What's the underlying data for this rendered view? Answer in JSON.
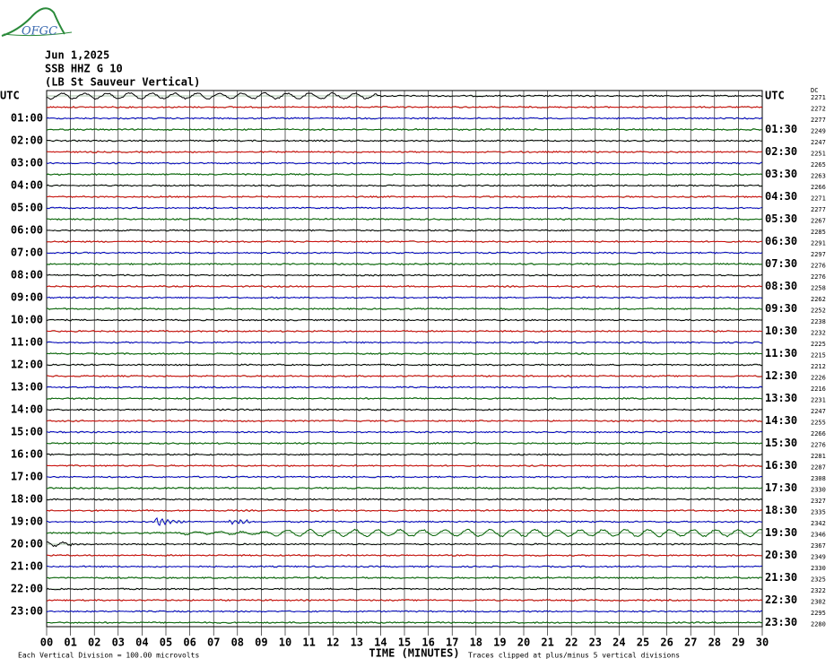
{
  "logo": "OFGC",
  "header": [
    "Jun 1,2025",
    "SSB HHZ G 10",
    "(LB St Sauveur Vertical)"
  ],
  "left_labels": [
    "UTC",
    "01:00",
    "02:00",
    "03:00",
    "04:00",
    "05:00",
    "06:00",
    "07:00",
    "08:00",
    "09:00",
    "10:00",
    "11:00",
    "12:00",
    "13:00",
    "14:00",
    "15:00",
    "16:00",
    "17:00",
    "18:00",
    "19:00",
    "20:00",
    "21:00",
    "22:00",
    "23:00"
  ],
  "right_labels": [
    "UTC",
    "01:30",
    "02:30",
    "03:30",
    "04:30",
    "05:30",
    "06:30",
    "07:30",
    "08:30",
    "09:30",
    "10:30",
    "11:30",
    "12:30",
    "13:30",
    "14:30",
    "15:30",
    "16:30",
    "17:30",
    "18:30",
    "19:30",
    "20:30",
    "21:30",
    "22:30",
    "23:30"
  ],
  "dc_title": "DC",
  "dc_offsets": [
    "2271",
    "2272",
    "2277",
    "2249",
    "2247",
    "2251",
    "2265",
    "2263",
    "2266",
    "2271",
    "2277",
    "2267",
    "2285",
    "2291",
    "2297",
    "2276",
    "2276",
    "2258",
    "2262",
    "2252",
    "2238",
    "2232",
    "2225",
    "2215",
    "2212",
    "2226",
    "2216",
    "2231",
    "2247",
    "2255",
    "2266",
    "2276",
    "2281",
    "2287",
    "2308",
    "2330",
    "2327",
    "2335",
    "2342",
    "2346",
    "2367",
    "2349",
    "2330",
    "2325",
    "2322",
    "2302",
    "2295",
    "2280"
  ],
  "x_ticks": [
    "00",
    "01",
    "02",
    "03",
    "04",
    "05",
    "06",
    "07",
    "08",
    "09",
    "10",
    "11",
    "12",
    "13",
    "14",
    "15",
    "16",
    "17",
    "18",
    "19",
    "20",
    "21",
    "22",
    "23",
    "24",
    "25",
    "26",
    "27",
    "28",
    "29",
    "30"
  ],
  "x_title": "TIME (MINUTES)",
  "scale_note": "Each Vertical Division =  100.00 microvolts",
  "clip_note": "Traces clipped at plus/minus 5 vertical divisions"
}
